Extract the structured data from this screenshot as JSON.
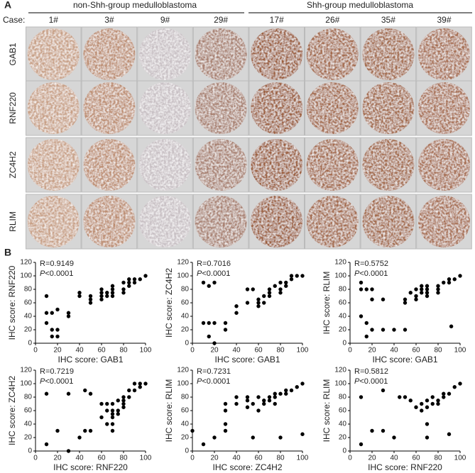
{
  "panel_a": {
    "label": "A",
    "groups": [
      "non-Shh-group medulloblastoma",
      "Shh-group medulloblastoma"
    ],
    "case_label": "Case:",
    "cases": [
      "1#",
      "3#",
      "9#",
      "29#",
      "17#",
      "26#",
      "35#",
      "39#"
    ],
    "markers": [
      "GAB1",
      "RNF220",
      "ZC4H2",
      "RLIM"
    ]
  },
  "panel_b_label": "B",
  "chart_data": [
    {
      "type": "scatter",
      "xlabel": "IHC score: GAB1",
      "ylabel": "IHC score: RNF220",
      "r_text": "R=0.9149",
      "p_symbol": "P",
      "p_value": "<0.0001",
      "xlim": [
        0,
        100
      ],
      "ylim": [
        0,
        120
      ],
      "xticks": [
        0,
        20,
        40,
        60,
        80,
        100
      ],
      "yticks": [
        0,
        20,
        40,
        60,
        80,
        100,
        120
      ],
      "color": "#000000",
      "x": [
        10,
        10,
        10,
        15,
        15,
        15,
        20,
        20,
        20,
        30,
        30,
        40,
        40,
        50,
        50,
        50,
        60,
        60,
        60,
        60,
        65,
        65,
        70,
        70,
        70,
        70,
        80,
        80,
        80,
        85,
        85,
        85,
        90,
        90,
        95,
        100
      ],
      "values": [
        70,
        45,
        30,
        20,
        10,
        45,
        10,
        50,
        20,
        45,
        40,
        75,
        70,
        70,
        65,
        60,
        75,
        70,
        65,
        80,
        75,
        70,
        85,
        80,
        75,
        70,
        90,
        80,
        75,
        85,
        95,
        90,
        90,
        95,
        95,
        100
      ]
    },
    {
      "type": "scatter",
      "xlabel": "IHC score: GAB1",
      "ylabel": "IHC score: ZC4H2",
      "r_text": "R=0.7016",
      "p_symbol": "P",
      "p_value": "<0.0001",
      "xlim": [
        0,
        100
      ],
      "ylim": [
        0,
        120
      ],
      "xticks": [
        0,
        20,
        40,
        60,
        80,
        100
      ],
      "yticks": [
        0,
        20,
        40,
        60,
        80,
        100,
        120
      ],
      "color": "#000000",
      "x": [
        10,
        10,
        15,
        15,
        15,
        20,
        20,
        20,
        30,
        30,
        40,
        40,
        50,
        50,
        55,
        60,
        60,
        60,
        65,
        65,
        70,
        70,
        70,
        75,
        80,
        80,
        80,
        85,
        85,
        90,
        90,
        95,
        100
      ],
      "values": [
        90,
        30,
        85,
        10,
        30,
        90,
        30,
        0,
        20,
        30,
        55,
        45,
        80,
        60,
        80,
        55,
        65,
        60,
        70,
        60,
        80,
        75,
        70,
        85,
        90,
        80,
        75,
        90,
        85,
        95,
        100,
        100,
        100
      ]
    },
    {
      "type": "scatter",
      "xlabel": "IHC score: GAB1",
      "ylabel": "IHC score: RLIM",
      "r_text": "R=0.5752",
      "p_symbol": "P",
      "p_value": "<0.0001",
      "xlim": [
        0,
        100
      ],
      "ylim": [
        0,
        120
      ],
      "xticks": [
        0,
        20,
        40,
        60,
        80,
        100
      ],
      "yticks": [
        0,
        20,
        40,
        60,
        80,
        100,
        120
      ],
      "color": "#000000",
      "x": [
        10,
        10,
        10,
        15,
        15,
        15,
        20,
        20,
        20,
        30,
        30,
        40,
        50,
        50,
        50,
        55,
        60,
        60,
        60,
        65,
        65,
        65,
        70,
        70,
        70,
        70,
        80,
        80,
        80,
        85,
        90,
        90,
        92,
        95,
        100
      ],
      "values": [
        90,
        80,
        40,
        30,
        10,
        80,
        80,
        20,
        65,
        65,
        20,
        20,
        20,
        65,
        60,
        75,
        80,
        70,
        65,
        85,
        75,
        80,
        85,
        80,
        75,
        70,
        85,
        80,
        75,
        90,
        90,
        95,
        25,
        95,
        100
      ]
    },
    {
      "type": "scatter",
      "xlabel": "IHC score: RNF220",
      "ylabel": "IHC score: ZC4H2",
      "r_text": "R=0.7219",
      "p_symbol": "P",
      "p_value": "<0.0001",
      "xlim": [
        0,
        100
      ],
      "ylim": [
        0,
        120
      ],
      "xticks": [
        0,
        20,
        40,
        60,
        80,
        100
      ],
      "yticks": [
        0,
        20,
        40,
        60,
        80,
        100,
        120
      ],
      "color": "#000000",
      "x": [
        10,
        10,
        20,
        30,
        30,
        40,
        45,
        45,
        50,
        50,
        60,
        60,
        65,
        65,
        65,
        70,
        70,
        70,
        70,
        70,
        70,
        75,
        75,
        75,
        80,
        80,
        80,
        80,
        85,
        85,
        90,
        90,
        95,
        95,
        100
      ],
      "values": [
        85,
        10,
        30,
        85,
        0,
        20,
        90,
        30,
        85,
        30,
        70,
        50,
        70,
        40,
        60,
        70,
        60,
        55,
        50,
        40,
        30,
        75,
        60,
        55,
        80,
        75,
        70,
        65,
        90,
        80,
        100,
        90,
        100,
        95,
        100
      ]
    },
    {
      "type": "scatter",
      "xlabel": "IHC score: ZC4H2",
      "ylabel": "IHC score: RLIM",
      "r_text": "R=0.7231",
      "p_symbol": "P",
      "p_value": "<0.0001",
      "xlim": [
        0,
        100
      ],
      "ylim": [
        0,
        120
      ],
      "xticks": [
        0,
        20,
        40,
        60,
        80,
        100
      ],
      "yticks": [
        0,
        20,
        40,
        60,
        80,
        100,
        120
      ],
      "color": "#000000",
      "x": [
        0,
        10,
        20,
        30,
        30,
        30,
        30,
        40,
        40,
        50,
        50,
        50,
        55,
        55,
        60,
        60,
        65,
        65,
        70,
        70,
        75,
        75,
        80,
        80,
        85,
        85,
        90,
        95,
        100,
        100,
        75
      ],
      "values": [
        30,
        10,
        20,
        70,
        60,
        40,
        30,
        80,
        70,
        80,
        75,
        65,
        20,
        70,
        80,
        60,
        75,
        70,
        80,
        75,
        85,
        80,
        85,
        20,
        90,
        85,
        90,
        95,
        100,
        25,
        70
      ]
    },
    {
      "type": "scatter",
      "xlabel": "IHC score: RNF220",
      "ylabel": "IHC score: RLIM",
      "r_text": "R=0.5812",
      "p_symbol": "P",
      "p_value": "<0.0001",
      "xlim": [
        0,
        100
      ],
      "ylim": [
        0,
        120
      ],
      "xticks": [
        0,
        20,
        40,
        60,
        80,
        100
      ],
      "yticks": [
        0,
        20,
        40,
        60,
        80,
        100,
        120
      ],
      "color": "#000000",
      "x": [
        10,
        10,
        20,
        30,
        30,
        40,
        45,
        50,
        55,
        60,
        65,
        65,
        70,
        70,
        70,
        75,
        75,
        80,
        80,
        85,
        85,
        90,
        90,
        95,
        100,
        70
      ],
      "values": [
        80,
        10,
        30,
        90,
        30,
        20,
        80,
        80,
        75,
        65,
        60,
        70,
        65,
        40,
        20,
        80,
        70,
        75,
        70,
        85,
        80,
        85,
        25,
        95,
        100,
        75
      ]
    }
  ]
}
